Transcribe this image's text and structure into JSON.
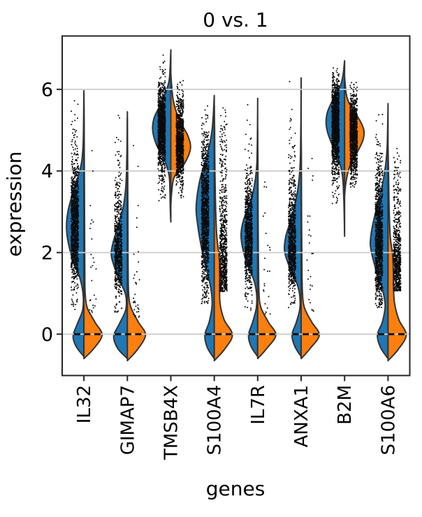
{
  "title": "0 vs. 1",
  "axes": {
    "ylabel": "expression",
    "xlabel": "genes",
    "yticks": [
      "0",
      "2",
      "4",
      "6"
    ],
    "ytick_values": [
      0,
      2,
      4,
      6
    ],
    "ylim": [
      -1.0,
      7.3
    ],
    "grid": true,
    "gridcolor": "#cccccc",
    "spinecolor": "#262626"
  },
  "chart_data": {
    "type": "violin",
    "split": true,
    "title": "0 vs. 1",
    "xlabel": "genes",
    "ylabel": "expression",
    "categories": [
      "IL32",
      "GIMAP7",
      "TMSB4X",
      "S100A4",
      "IL7R",
      "ANXA1",
      "B2M",
      "S100A6"
    ],
    "groups": [
      {
        "name": "0",
        "side": "left",
        "color": "#1f77b4"
      },
      {
        "name": "1",
        "side": "right",
        "color": "#ff7f0e"
      }
    ],
    "violins": [
      {
        "gene": "IL32",
        "median_dash_at": 0,
        "left": {
          "relwidth": 0.94,
          "knots": [
            [
              -0.55,
              0
            ],
            [
              -0.3,
              0.45
            ],
            [
              -0.05,
              0.62
            ],
            [
              0.25,
              0.38
            ],
            [
              0.6,
              0.07
            ],
            [
              1.0,
              0.05
            ],
            [
              1.4,
              0.25
            ],
            [
              1.8,
              0.62
            ],
            [
              2.2,
              0.88
            ],
            [
              2.6,
              1.0
            ],
            [
              3.0,
              0.92
            ],
            [
              3.4,
              0.68
            ],
            [
              3.8,
              0.38
            ],
            [
              4.2,
              0.14
            ],
            [
              4.6,
              0.05
            ],
            [
              5.0,
              0.025
            ],
            [
              5.5,
              0.012
            ],
            [
              5.97,
              0
            ]
          ],
          "points_n": 1100,
          "points_min": 0.6
        },
        "right": {
          "relwidth": 0.98,
          "knots": [
            [
              -0.6,
              0
            ],
            [
              -0.35,
              0.55
            ],
            [
              -0.02,
              1.0
            ],
            [
              0.3,
              0.6
            ],
            [
              0.65,
              0.18
            ],
            [
              1.0,
              0.07
            ],
            [
              1.5,
              0.05
            ],
            [
              2.5,
              0.04
            ],
            [
              3.5,
              0.03
            ],
            [
              4.5,
              0.02
            ],
            [
              5.2,
              0.015
            ],
            [
              5.9,
              0
            ]
          ],
          "points_n": 26,
          "points_min": 0.5
        }
      },
      {
        "gene": "GIMAP7",
        "median_dash_at": 0,
        "left": {
          "relwidth": 0.87,
          "knots": [
            [
              -0.6,
              0
            ],
            [
              -0.35,
              0.6
            ],
            [
              -0.05,
              0.85
            ],
            [
              0.25,
              0.5
            ],
            [
              0.6,
              0.1
            ],
            [
              0.95,
              0.1
            ],
            [
              1.3,
              0.45
            ],
            [
              1.7,
              0.85
            ],
            [
              2.0,
              1.0
            ],
            [
              2.4,
              0.78
            ],
            [
              2.8,
              0.45
            ],
            [
              3.2,
              0.22
            ],
            [
              3.6,
              0.1
            ],
            [
              4.0,
              0.05
            ],
            [
              4.6,
              0.02
            ],
            [
              5.45,
              0
            ]
          ],
          "points_n": 700,
          "points_min": 0.55
        },
        "right": {
          "relwidth": 0.98,
          "knots": [
            [
              -0.65,
              0
            ],
            [
              -0.38,
              0.55
            ],
            [
              -0.02,
              1.0
            ],
            [
              0.3,
              0.6
            ],
            [
              0.65,
              0.2
            ],
            [
              1.0,
              0.07
            ],
            [
              1.8,
              0.04
            ],
            [
              2.8,
              0.03
            ],
            [
              4.0,
              0.02
            ],
            [
              5.3,
              0
            ]
          ],
          "points_n": 34,
          "points_min": 0.4
        }
      },
      {
        "gene": "TMSB4X",
        "median_dash_at": null,
        "left": {
          "relwidth": 0.98,
          "knots": [
            [
              2.75,
              0
            ],
            [
              3.1,
              0.03
            ],
            [
              3.5,
              0.05
            ],
            [
              3.9,
              0.1
            ],
            [
              4.3,
              0.38
            ],
            [
              4.65,
              0.8
            ],
            [
              5.0,
              1.0
            ],
            [
              5.3,
              0.92
            ],
            [
              5.6,
              0.6
            ],
            [
              5.9,
              0.3
            ],
            [
              6.2,
              0.1
            ],
            [
              6.5,
              0.04
            ],
            [
              6.97,
              0
            ]
          ],
          "points_n": 1200,
          "points_min": 3.2
        },
        "right": {
          "relwidth": 1.06,
          "knots": [
            [
              3.15,
              0
            ],
            [
              3.5,
              0.05
            ],
            [
              3.85,
              0.18
            ],
            [
              4.2,
              0.72
            ],
            [
              4.55,
              1.0
            ],
            [
              4.85,
              0.88
            ],
            [
              5.15,
              0.55
            ],
            [
              5.45,
              0.28
            ],
            [
              5.75,
              0.12
            ],
            [
              6.05,
              0.05
            ],
            [
              6.4,
              0
            ]
          ],
          "points_n": 1100,
          "points_min": 3.3
        }
      },
      {
        "gene": "S100A4",
        "median_dash_at": 0,
        "left": {
          "relwidth": 0.98,
          "knots": [
            [
              -0.6,
              0
            ],
            [
              -0.33,
              0.38
            ],
            [
              -0.02,
              0.52
            ],
            [
              0.3,
              0.28
            ],
            [
              0.7,
              0.12
            ],
            [
              1.1,
              0.18
            ],
            [
              1.5,
              0.38
            ],
            [
              1.9,
              0.6
            ],
            [
              2.3,
              0.78
            ],
            [
              2.7,
              0.92
            ],
            [
              3.05,
              1.0
            ],
            [
              3.4,
              0.94
            ],
            [
              3.8,
              0.78
            ],
            [
              4.2,
              0.52
            ],
            [
              4.6,
              0.28
            ],
            [
              5.0,
              0.12
            ],
            [
              5.4,
              0.05
            ],
            [
              5.85,
              0
            ]
          ],
          "points_n": 1200,
          "points_min": 0.75
        },
        "right": {
          "relwidth": 0.98,
          "knots": [
            [
              -0.65,
              0
            ],
            [
              -0.38,
              0.55
            ],
            [
              -0.02,
              1.0
            ],
            [
              0.35,
              0.55
            ],
            [
              0.75,
              0.32
            ],
            [
              1.15,
              0.3
            ],
            [
              1.55,
              0.3
            ],
            [
              1.95,
              0.26
            ],
            [
              2.4,
              0.14
            ],
            [
              2.9,
              0.09
            ],
            [
              3.4,
              0.06
            ],
            [
              3.9,
              0.04
            ],
            [
              4.4,
              0.03
            ],
            [
              5.0,
              0.02
            ],
            [
              5.6,
              0
            ]
          ],
          "points_n": 800,
          "points_min": 1.05
        }
      },
      {
        "gene": "IL7R",
        "median_dash_at": 0,
        "left": {
          "relwidth": 0.9,
          "knots": [
            [
              -0.55,
              0
            ],
            [
              -0.3,
              0.4
            ],
            [
              -0.02,
              0.55
            ],
            [
              0.3,
              0.3
            ],
            [
              0.65,
              0.08
            ],
            [
              1.0,
              0.07
            ],
            [
              1.35,
              0.25
            ],
            [
              1.7,
              0.62
            ],
            [
              2.1,
              0.9
            ],
            [
              2.45,
              1.0
            ],
            [
              2.8,
              0.85
            ],
            [
              3.1,
              0.55
            ],
            [
              3.45,
              0.3
            ],
            [
              3.8,
              0.14
            ],
            [
              4.2,
              0.05
            ],
            [
              4.8,
              0.02
            ],
            [
              5.78,
              0
            ]
          ],
          "points_n": 900,
          "points_min": 0.6
        },
        "right": {
          "relwidth": 0.98,
          "knots": [
            [
              -0.6,
              0
            ],
            [
              -0.35,
              0.5
            ],
            [
              -0.02,
              1.0
            ],
            [
              0.3,
              0.58
            ],
            [
              0.65,
              0.18
            ],
            [
              1.0,
              0.07
            ],
            [
              1.8,
              0.04
            ],
            [
              3.0,
              0.02
            ],
            [
              4.2,
              0.015
            ],
            [
              5.0,
              0
            ]
          ],
          "points_n": 24,
          "points_min": 0.5
        }
      },
      {
        "gene": "ANXA1",
        "median_dash_at": 0,
        "left": {
          "relwidth": 0.9,
          "knots": [
            [
              -0.55,
              0
            ],
            [
              -0.3,
              0.38
            ],
            [
              -0.02,
              0.55
            ],
            [
              0.28,
              0.3
            ],
            [
              0.62,
              0.08
            ],
            [
              1.0,
              0.1
            ],
            [
              1.35,
              0.35
            ],
            [
              1.7,
              0.75
            ],
            [
              2.05,
              1.0
            ],
            [
              2.4,
              0.92
            ],
            [
              2.75,
              0.65
            ],
            [
              3.1,
              0.42
            ],
            [
              3.5,
              0.22
            ],
            [
              3.9,
              0.1
            ],
            [
              4.4,
              0.04
            ],
            [
              5.2,
              0.015
            ],
            [
              6.28,
              0
            ]
          ],
          "points_n": 850,
          "points_min": 0.6
        },
        "right": {
          "relwidth": 0.98,
          "knots": [
            [
              -0.6,
              0
            ],
            [
              -0.35,
              0.5
            ],
            [
              -0.02,
              1.0
            ],
            [
              0.3,
              0.58
            ],
            [
              0.65,
              0.18
            ],
            [
              1.05,
              0.07
            ],
            [
              1.8,
              0.04
            ],
            [
              3.0,
              0.02
            ],
            [
              4.3,
              0.015
            ],
            [
              5.1,
              0
            ]
          ],
          "points_n": 26,
          "points_min": 0.55
        }
      },
      {
        "gene": "B2M",
        "median_dash_at": null,
        "left": {
          "relwidth": 1.0,
          "knots": [
            [
              2.4,
              0
            ],
            [
              2.9,
              0.02
            ],
            [
              3.4,
              0.05
            ],
            [
              3.9,
              0.12
            ],
            [
              4.3,
              0.34
            ],
            [
              4.65,
              0.68
            ],
            [
              4.95,
              0.92
            ],
            [
              5.2,
              1.0
            ],
            [
              5.45,
              0.92
            ],
            [
              5.7,
              0.68
            ],
            [
              5.95,
              0.38
            ],
            [
              6.15,
              0.18
            ],
            [
              6.4,
              0.07
            ],
            [
              6.7,
              0
            ]
          ],
          "points_n": 1300,
          "points_min": 3.2
        },
        "right": {
          "relwidth": 1.04,
          "knots": [
            [
              3.4,
              0
            ],
            [
              3.75,
              0.08
            ],
            [
              4.1,
              0.26
            ],
            [
              4.45,
              0.65
            ],
            [
              4.75,
              0.95
            ],
            [
              5.0,
              1.0
            ],
            [
              5.25,
              0.78
            ],
            [
              5.5,
              0.42
            ],
            [
              5.7,
              0.2
            ],
            [
              5.9,
              0.08
            ],
            [
              6.3,
              0
            ]
          ],
          "points_n": 1200,
          "points_min": 3.6
        }
      },
      {
        "gene": "S100A6",
        "median_dash_at": 0,
        "left": {
          "relwidth": 0.96,
          "knots": [
            [
              -0.6,
              0
            ],
            [
              -0.33,
              0.42
            ],
            [
              -0.02,
              0.6
            ],
            [
              0.3,
              0.32
            ],
            [
              0.7,
              0.16
            ],
            [
              1.1,
              0.32
            ],
            [
              1.5,
              0.62
            ],
            [
              1.85,
              0.85
            ],
            [
              2.2,
              1.0
            ],
            [
              2.55,
              0.92
            ],
            [
              2.9,
              0.75
            ],
            [
              3.25,
              0.55
            ],
            [
              3.6,
              0.35
            ],
            [
              3.95,
              0.2
            ],
            [
              4.3,
              0.1
            ],
            [
              4.7,
              0.04
            ],
            [
              5.65,
              0
            ]
          ],
          "points_n": 1100,
          "points_min": 0.65
        },
        "right": {
          "relwidth": 0.98,
          "knots": [
            [
              -0.65,
              0
            ],
            [
              -0.38,
              0.55
            ],
            [
              -0.02,
              1.0
            ],
            [
              0.35,
              0.6
            ],
            [
              0.75,
              0.36
            ],
            [
              1.15,
              0.3
            ],
            [
              1.55,
              0.29
            ],
            [
              1.95,
              0.25
            ],
            [
              2.35,
              0.13
            ],
            [
              2.8,
              0.08
            ],
            [
              3.3,
              0.05
            ],
            [
              3.9,
              0.03
            ],
            [
              4.6,
              0
            ]
          ],
          "points_n": 750,
          "points_min": 1.05
        }
      }
    ],
    "style": {
      "edgecolor": "#333333",
      "dotcolor": "#0a0a0a",
      "dashcolor": "#111111"
    }
  }
}
